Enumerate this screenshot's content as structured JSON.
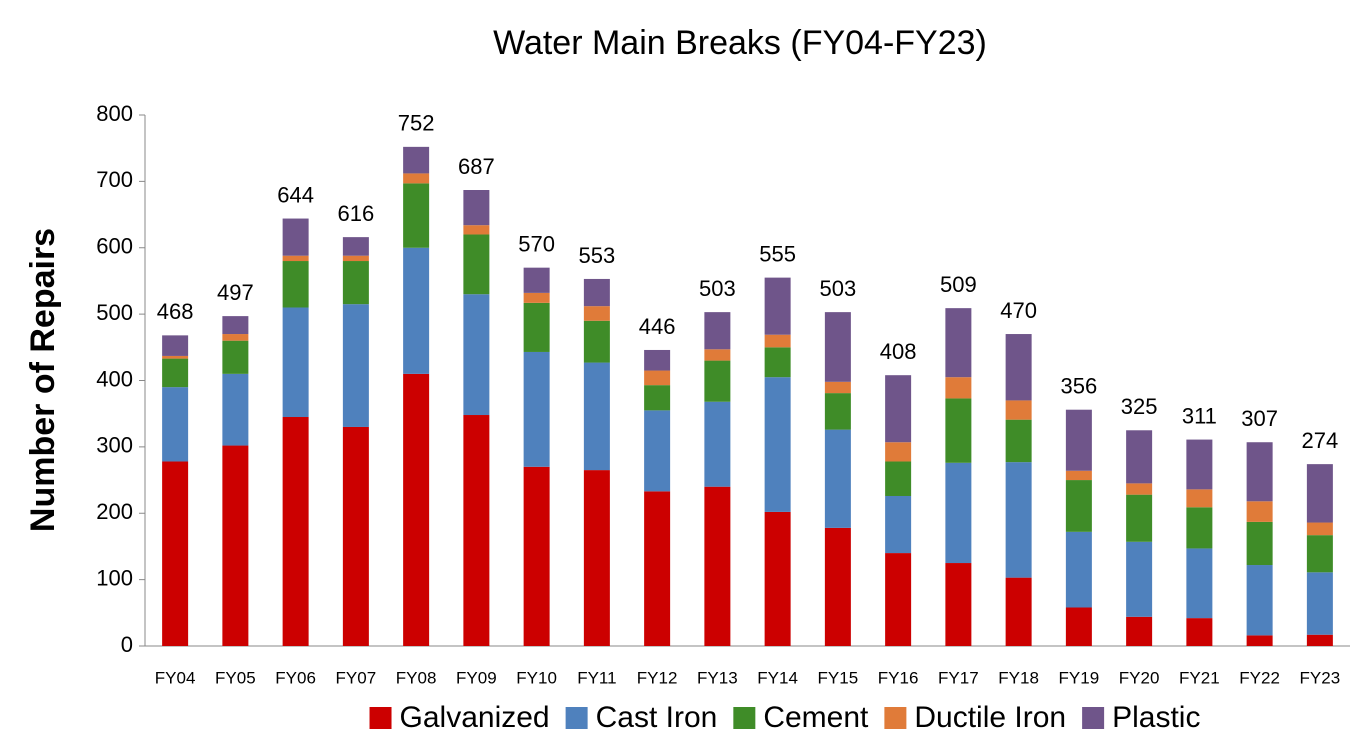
{
  "chart_data": {
    "type": "stacked_bar",
    "title": "Water Main Breaks (FY04-FY23)",
    "y_label": "Number of Repairs",
    "categories": [
      "FY04",
      "FY05",
      "FY06",
      "FY07",
      "FY08",
      "FY09",
      "FY10",
      "FY11",
      "FY12",
      "FY13",
      "FY14",
      "FY15",
      "FY16",
      "FY17",
      "FY18",
      "FY19",
      "FY20",
      "FY21",
      "FY22",
      "FY23"
    ],
    "series": [
      {
        "name": "Galvanized",
        "color": "#cc0000",
        "values": [
          278,
          302,
          345,
          330,
          410,
          348,
          270,
          265,
          233,
          240,
          202,
          178,
          140,
          125,
          103,
          58,
          44,
          42,
          16,
          17
        ]
      },
      {
        "name": "Cast Iron",
        "color": "#4f81bd",
        "values": [
          112,
          108,
          165,
          185,
          190,
          182,
          173,
          162,
          122,
          128,
          203,
          148,
          86,
          151,
          174,
          114,
          113,
          105,
          106,
          94
        ]
      },
      {
        "name": "Cement",
        "color": "#3f8c28",
        "values": [
          43,
          50,
          70,
          65,
          97,
          90,
          74,
          63,
          38,
          62,
          45,
          55,
          52,
          97,
          64,
          78,
          71,
          62,
          65,
          56
        ]
      },
      {
        "name": "Ductile Iron",
        "color": "#e07b39",
        "values": [
          4,
          10,
          8,
          8,
          15,
          14,
          15,
          22,
          22,
          17,
          19,
          17,
          29,
          32,
          29,
          14,
          17,
          27,
          31,
          19
        ]
      },
      {
        "name": "Plastic",
        "color": "#6f558a",
        "values": [
          31,
          27,
          56,
          28,
          40,
          53,
          38,
          41,
          31,
          56,
          86,
          105,
          101,
          104,
          100,
          92,
          80,
          75,
          89,
          88
        ]
      }
    ],
    "totals": [
      468,
      497,
      644,
      616,
      752,
      687,
      570,
      553,
      446,
      503,
      555,
      503,
      408,
      509,
      470,
      356,
      325,
      311,
      307,
      274
    ],
    "ylim": [
      0,
      800
    ],
    "yticks": [
      0,
      100,
      200,
      300,
      400,
      500,
      600,
      700,
      800
    ],
    "grid": false,
    "legend": "bottom"
  }
}
